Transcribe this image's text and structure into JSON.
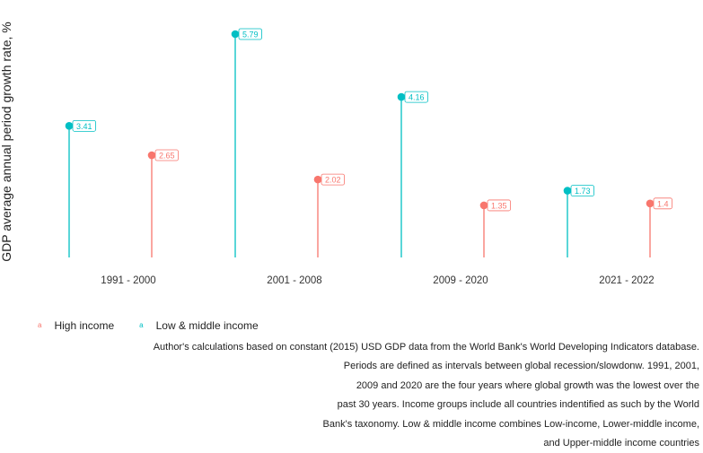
{
  "chart_data": {
    "type": "lollipop",
    "ylabel": "GDP average annual period growth rate, %",
    "xlabel": "",
    "categories": [
      "1991 - 2000",
      "2001 - 2008",
      "2009 - 2020",
      "2021 - 2022"
    ],
    "series": [
      {
        "name": "High income",
        "color": "#f8766d",
        "values": [
          2.65,
          2.02,
          1.35,
          1.4
        ],
        "labels": [
          "2.65",
          "2.02",
          "1.35",
          "1.4"
        ]
      },
      {
        "name": "Low & middle income",
        "color": "#00bfc4",
        "values": [
          3.41,
          5.79,
          4.16,
          1.73
        ],
        "labels": [
          "3.41",
          "5.79",
          "4.16",
          "1.73"
        ]
      }
    ],
    "ylim": [
      0,
      5.79
    ],
    "grid": false,
    "legend_position": "bottom-left"
  },
  "legend": {
    "key_glyph": "a",
    "items": [
      {
        "label": "High income",
        "color": "#f8766d"
      },
      {
        "label": "Low & middle income",
        "color": "#00bfc4"
      }
    ]
  },
  "caption": {
    "lines": [
      "Author's calculations based on constant (2015) USD GDP data from the World Bank's World Developing Indicators database.",
      "Periods are defined as intervals between global recession/slowdonw. 1991, 2001,",
      "2009 and 2020 are the four years where global growth was the lowest over the",
      "past 30 years. Income groups include all countries indentified as such by the World",
      "Bank's taxonomy. Low & middle income combines Low-income, Lower-middle income,",
      "and Upper-middle income countries"
    ]
  }
}
